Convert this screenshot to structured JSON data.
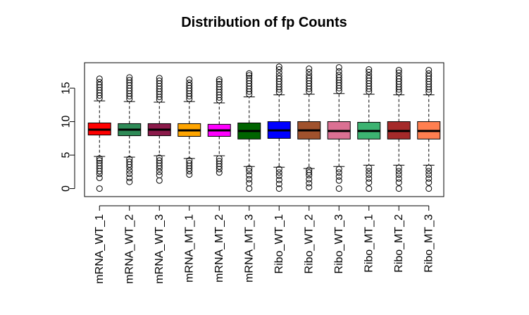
{
  "chart_data": {
    "type": "box",
    "title": "Distribution of fp Counts",
    "xlabel": "",
    "ylabel": "",
    "ylim": [
      -1.2,
      18.8
    ],
    "yticks": [
      0,
      5,
      10,
      15
    ],
    "grid": false,
    "legend": "none",
    "categories": [
      "mRNA_WT_1",
      "mRNA_WT_2",
      "mRNA_WT_3",
      "mRNA_MT_1",
      "mRNA_MT_2",
      "mRNA_MT_3",
      "Ribo_WT_1",
      "Ribo_WT_2",
      "Ribo_WT_3",
      "Ribo_MT_1",
      "Ribo_MT_2",
      "Ribo_MT_3"
    ],
    "boxes": [
      {
        "color": "#FF0000",
        "q1": 8.0,
        "median": 8.8,
        "q3": 9.8,
        "whisker_low": 4.8,
        "whisker_high": 13.1,
        "out_low": [
          0.0,
          1.6,
          2.2,
          2.6,
          3.0,
          3.4,
          3.8,
          4.2,
          4.5
        ],
        "out_high": [
          13.5,
          13.9,
          14.3,
          14.7,
          15.1,
          15.5,
          15.9,
          16.4
        ]
      },
      {
        "color": "#2E8B57",
        "q1": 7.9,
        "median": 8.8,
        "q3": 9.7,
        "whisker_low": 4.7,
        "whisker_high": 13.0,
        "out_low": [
          1.0,
          1.6,
          2.2,
          2.7,
          3.2,
          3.6,
          4.0,
          4.4
        ],
        "out_high": [
          13.4,
          13.8,
          14.2,
          14.6,
          15.0,
          15.4,
          15.8,
          16.2,
          16.6
        ]
      },
      {
        "color": "#8B1A4A",
        "q1": 7.9,
        "median": 8.8,
        "q3": 9.7,
        "whisker_low": 4.9,
        "whisker_high": 12.9,
        "out_low": [
          1.2,
          2.0,
          2.5,
          3.0,
          3.4,
          3.8,
          4.2,
          4.6
        ],
        "out_high": [
          13.3,
          13.7,
          14.1,
          14.5,
          14.9,
          15.3,
          15.7,
          16.1,
          16.5
        ]
      },
      {
        "color": "#FFA500",
        "q1": 7.8,
        "median": 8.7,
        "q3": 9.7,
        "whisker_low": 4.5,
        "whisker_high": 13.0,
        "out_low": [
          2.1,
          2.6,
          3.0,
          3.4,
          3.8,
          4.2
        ],
        "out_high": [
          13.4,
          13.8,
          14.2,
          14.6,
          15.0,
          15.4,
          15.8,
          16.3
        ]
      },
      {
        "color": "#FF00FF",
        "q1": 7.8,
        "median": 8.7,
        "q3": 9.6,
        "whisker_low": 4.9,
        "whisker_high": 12.8,
        "out_low": [
          2.4,
          2.9,
          3.3,
          3.7,
          4.1,
          4.5
        ],
        "out_high": [
          13.2,
          13.6,
          14.0,
          14.4,
          14.8,
          15.2,
          15.6,
          16.0,
          16.3
        ]
      },
      {
        "color": "#006400",
        "q1": 7.4,
        "median": 8.6,
        "q3": 9.8,
        "whisker_low": 3.3,
        "whisker_high": 13.7,
        "out_low": [
          0.0,
          0.8,
          1.4,
          2.0,
          2.6,
          3.0
        ],
        "out_high": [
          14.1,
          14.5,
          14.9,
          15.3,
          15.7,
          16.1,
          16.5,
          16.9,
          17.2
        ]
      },
      {
        "color": "#0000FF",
        "q1": 7.5,
        "median": 8.7,
        "q3": 10.0,
        "whisker_low": 3.2,
        "whisker_high": 14.0,
        "out_low": [
          0.0,
          0.7,
          1.3,
          1.9,
          2.4,
          2.9
        ],
        "out_high": [
          14.4,
          14.8,
          15.2,
          15.6,
          16.0,
          16.4,
          16.8,
          17.3,
          17.8,
          18.2
        ]
      },
      {
        "color": "#A0522D",
        "q1": 7.4,
        "median": 8.7,
        "q3": 10.0,
        "whisker_low": 3.0,
        "whisker_high": 14.1,
        "out_low": [
          0.2,
          0.8,
          1.4,
          2.0,
          2.4,
          2.8
        ],
        "out_high": [
          14.5,
          14.9,
          15.3,
          15.7,
          16.1,
          16.5,
          16.9,
          17.4,
          17.9
        ]
      },
      {
        "color": "#DB7093",
        "q1": 7.4,
        "median": 8.6,
        "q3": 10.0,
        "whisker_low": 3.3,
        "whisker_high": 14.2,
        "out_low": [
          0.0,
          1.2,
          1.8,
          2.4,
          2.9
        ],
        "out_high": [
          14.6,
          15.0,
          15.4,
          15.8,
          16.2,
          16.6,
          17.0,
          17.5,
          18.1
        ]
      },
      {
        "color": "#3CB371",
        "q1": 7.4,
        "median": 8.6,
        "q3": 9.9,
        "whisker_low": 3.5,
        "whisker_high": 14.1,
        "out_low": [
          0.0,
          0.9,
          1.5,
          2.1,
          2.6,
          3.1
        ],
        "out_high": [
          14.5,
          14.9,
          15.3,
          15.7,
          16.1,
          16.5,
          16.9,
          17.4,
          17.8
        ]
      },
      {
        "color": "#A52A2A",
        "q1": 7.4,
        "median": 8.6,
        "q3": 10.0,
        "whisker_low": 3.5,
        "whisker_high": 14.0,
        "out_low": [
          0.0,
          0.9,
          1.5,
          2.1,
          2.6,
          3.1
        ],
        "out_high": [
          14.4,
          14.8,
          15.2,
          15.6,
          16.0,
          16.4,
          16.8,
          17.3,
          17.7
        ]
      },
      {
        "color": "#FF7F50",
        "q1": 7.4,
        "median": 8.6,
        "q3": 10.0,
        "whisker_low": 3.5,
        "whisker_high": 14.0,
        "out_low": [
          0.0,
          0.9,
          1.5,
          2.1,
          2.6,
          3.1
        ],
        "out_high": [
          14.4,
          14.8,
          15.2,
          15.6,
          16.0,
          16.4,
          16.8,
          17.2,
          17.7
        ]
      }
    ]
  }
}
